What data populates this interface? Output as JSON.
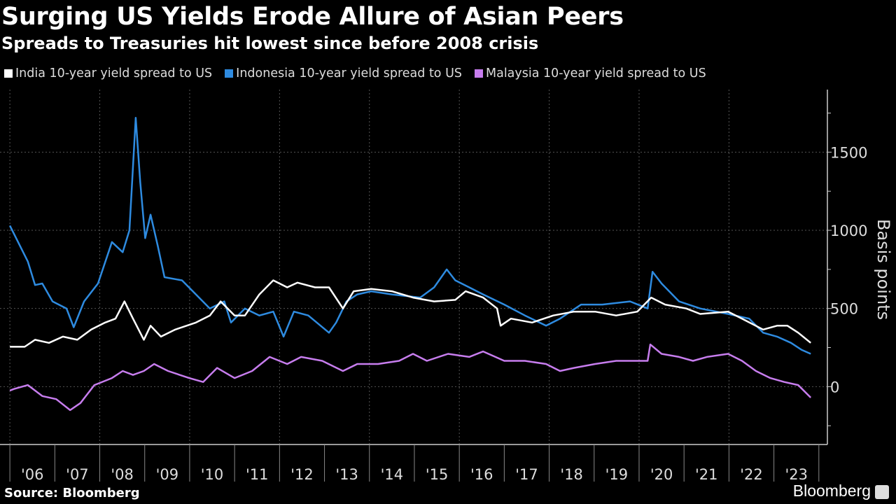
{
  "header": {
    "title": "Surging US Yields Erode Allure of Asian Peers",
    "subtitle": "Spreads to Treasuries hit lowest since before 2008 crisis"
  },
  "footer": {
    "source": "Source: Bloomberg",
    "brand": "Bloomberg",
    "brand_icon": "bloomberg-chart-icon"
  },
  "chart_data": {
    "type": "line",
    "title": "Surging US Yields Erode Allure of Asian Peers",
    "subtitle": "Spreads to Treasuries hit lowest since before 2008 crisis",
    "ylabel": "Basis points",
    "xlabel": "",
    "ylim": [
      -370,
      1900
    ],
    "xlim": [
      2005.78,
      2024.19
    ],
    "y_ticks": [
      0,
      500,
      1000,
      1500
    ],
    "y_minor_ticks": [
      -250,
      250,
      750,
      1250,
      1750
    ],
    "y_axis_side": "right",
    "x_tick_labels": [
      "'06",
      "'07",
      "'08",
      "'09",
      "'10",
      "'11",
      "'12",
      "'13",
      "'14",
      "'15",
      "'16",
      "'17",
      "'18",
      "'19",
      "'20",
      "'21",
      "'22",
      "'23"
    ],
    "x_tick_years": [
      2006,
      2007,
      2008,
      2009,
      2010,
      2011,
      2012,
      2013,
      2014,
      2015,
      2016,
      2017,
      2018,
      2019,
      2020,
      2021,
      2022,
      2023
    ],
    "grid": true,
    "legend_position": "top-left",
    "background": "#000000",
    "series": [
      {
        "name": "India 10-year yield spread to US",
        "color": "#ffffff",
        "points": [
          [
            2006.0,
            255
          ],
          [
            2006.33,
            255
          ],
          [
            2006.56,
            300
          ],
          [
            2006.87,
            280
          ],
          [
            2007.18,
            320
          ],
          [
            2007.5,
            300
          ],
          [
            2007.81,
            365
          ],
          [
            2008.12,
            410
          ],
          [
            2008.35,
            435
          ],
          [
            2008.55,
            545
          ],
          [
            2008.74,
            435
          ],
          [
            2008.98,
            300
          ],
          [
            2009.13,
            390
          ],
          [
            2009.36,
            320
          ],
          [
            2009.68,
            365
          ],
          [
            2010.14,
            410
          ],
          [
            2010.45,
            455
          ],
          [
            2010.69,
            545
          ],
          [
            2011.0,
            455
          ],
          [
            2011.23,
            455
          ],
          [
            2011.55,
            590
          ],
          [
            2011.86,
            680
          ],
          [
            2012.17,
            635
          ],
          [
            2012.4,
            665
          ],
          [
            2012.79,
            635
          ],
          [
            2013.1,
            635
          ],
          [
            2013.41,
            500
          ],
          [
            2013.65,
            610
          ],
          [
            2014.04,
            625
          ],
          [
            2014.5,
            610
          ],
          [
            2014.97,
            570
          ],
          [
            2015.44,
            545
          ],
          [
            2015.91,
            555
          ],
          [
            2016.14,
            610
          ],
          [
            2016.53,
            570
          ],
          [
            2016.84,
            500
          ],
          [
            2016.92,
            390
          ],
          [
            2017.15,
            435
          ],
          [
            2017.62,
            410
          ],
          [
            2018.09,
            455
          ],
          [
            2018.55,
            480
          ],
          [
            2019.02,
            480
          ],
          [
            2019.49,
            455
          ],
          [
            2019.96,
            480
          ],
          [
            2020.27,
            570
          ],
          [
            2020.58,
            525
          ],
          [
            2021.05,
            500
          ],
          [
            2021.36,
            465
          ],
          [
            2021.98,
            480
          ],
          [
            2022.29,
            435
          ],
          [
            2022.76,
            365
          ],
          [
            2023.07,
            390
          ],
          [
            2023.3,
            390
          ],
          [
            2023.54,
            345
          ],
          [
            2023.82,
            280
          ]
        ]
      },
      {
        "name": "Indonesia 10-year yield spread to US",
        "color": "#2e8be0",
        "points": [
          [
            2006.0,
            1030
          ],
          [
            2006.4,
            800
          ],
          [
            2006.56,
            650
          ],
          [
            2006.72,
            660
          ],
          [
            2006.95,
            545
          ],
          [
            2007.26,
            500
          ],
          [
            2007.42,
            380
          ],
          [
            2007.65,
            545
          ],
          [
            2007.96,
            660
          ],
          [
            2008.27,
            925
          ],
          [
            2008.51,
            860
          ],
          [
            2008.66,
            1000
          ],
          [
            2008.8,
            1720
          ],
          [
            2008.9,
            1310
          ],
          [
            2009.01,
            950
          ],
          [
            2009.13,
            1100
          ],
          [
            2009.29,
            900
          ],
          [
            2009.44,
            700
          ],
          [
            2009.83,
            680
          ],
          [
            2010.14,
            590
          ],
          [
            2010.45,
            500
          ],
          [
            2010.77,
            545
          ],
          [
            2010.92,
            410
          ],
          [
            2011.23,
            500
          ],
          [
            2011.55,
            455
          ],
          [
            2011.86,
            480
          ],
          [
            2012.09,
            320
          ],
          [
            2012.32,
            480
          ],
          [
            2012.64,
            455
          ],
          [
            2013.1,
            345
          ],
          [
            2013.26,
            410
          ],
          [
            2013.49,
            545
          ],
          [
            2013.73,
            590
          ],
          [
            2014.04,
            610
          ],
          [
            2014.5,
            590
          ],
          [
            2015.13,
            570
          ],
          [
            2015.44,
            635
          ],
          [
            2015.72,
            750
          ],
          [
            2015.91,
            680
          ],
          [
            2016.22,
            635
          ],
          [
            2016.53,
            590
          ],
          [
            2017.0,
            525
          ],
          [
            2017.46,
            455
          ],
          [
            2017.93,
            390
          ],
          [
            2018.24,
            435
          ],
          [
            2018.71,
            525
          ],
          [
            2019.18,
            525
          ],
          [
            2019.8,
            545
          ],
          [
            2020.19,
            500
          ],
          [
            2020.3,
            735
          ],
          [
            2020.5,
            660
          ],
          [
            2020.89,
            545
          ],
          [
            2021.36,
            500
          ],
          [
            2021.98,
            465
          ],
          [
            2022.45,
            435
          ],
          [
            2022.76,
            345
          ],
          [
            2023.07,
            320
          ],
          [
            2023.38,
            280
          ],
          [
            2023.62,
            235
          ],
          [
            2023.82,
            210
          ]
        ]
      },
      {
        "name": "Malaysia 10-year yield spread to US",
        "color": "#c77dee",
        "points": [
          [
            2006.0,
            -25
          ],
          [
            2006.09,
            -15
          ],
          [
            2006.4,
            10
          ],
          [
            2006.72,
            -60
          ],
          [
            2007.03,
            -80
          ],
          [
            2007.34,
            -150
          ],
          [
            2007.57,
            -105
          ],
          [
            2007.88,
            10
          ],
          [
            2008.27,
            55
          ],
          [
            2008.51,
            100
          ],
          [
            2008.74,
            75
          ],
          [
            2008.98,
            100
          ],
          [
            2009.21,
            145
          ],
          [
            2009.52,
            100
          ],
          [
            2009.99,
            55
          ],
          [
            2010.3,
            30
          ],
          [
            2010.61,
            120
          ],
          [
            2011.0,
            55
          ],
          [
            2011.39,
            100
          ],
          [
            2011.78,
            190
          ],
          [
            2012.17,
            145
          ],
          [
            2012.48,
            190
          ],
          [
            2012.95,
            165
          ],
          [
            2013.41,
            100
          ],
          [
            2013.73,
            145
          ],
          [
            2014.19,
            145
          ],
          [
            2014.66,
            165
          ],
          [
            2014.97,
            210
          ],
          [
            2015.28,
            165
          ],
          [
            2015.75,
            210
          ],
          [
            2016.22,
            190
          ],
          [
            2016.53,
            225
          ],
          [
            2017.0,
            165
          ],
          [
            2017.46,
            165
          ],
          [
            2017.93,
            145
          ],
          [
            2018.24,
            100
          ],
          [
            2018.55,
            120
          ],
          [
            2019.02,
            145
          ],
          [
            2019.49,
            165
          ],
          [
            2019.96,
            165
          ],
          [
            2020.19,
            165
          ],
          [
            2020.25,
            270
          ],
          [
            2020.5,
            210
          ],
          [
            2020.89,
            190
          ],
          [
            2021.2,
            165
          ],
          [
            2021.51,
            190
          ],
          [
            2021.98,
            210
          ],
          [
            2022.29,
            165
          ],
          [
            2022.6,
            100
          ],
          [
            2022.92,
            55
          ],
          [
            2023.23,
            30
          ],
          [
            2023.54,
            10
          ],
          [
            2023.82,
            -70
          ]
        ]
      }
    ]
  }
}
